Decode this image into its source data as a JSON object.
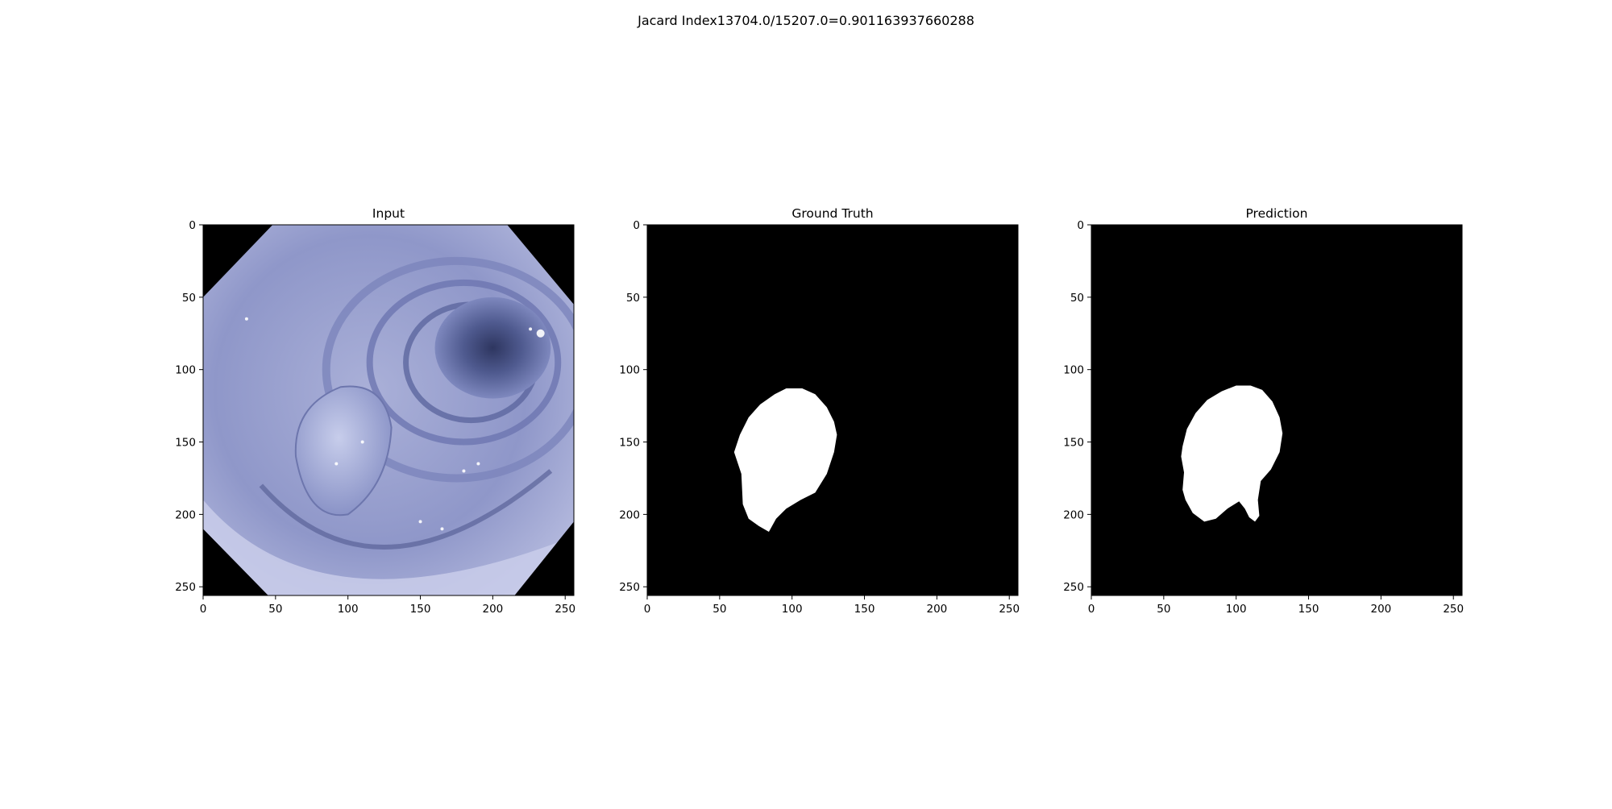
{
  "figure": {
    "suptitle": "Jacard Index13704.0/15207.0=0.901163937660288"
  },
  "panels": [
    {
      "title": "Input",
      "kind": "endoscopy-image",
      "xticks": [
        "0",
        "50",
        "100",
        "150",
        "200",
        "250"
      ],
      "yticks": [
        "0",
        "50",
        "100",
        "150",
        "200",
        "250"
      ]
    },
    {
      "title": "Ground Truth",
      "kind": "mask",
      "xticks": [
        "0",
        "50",
        "100",
        "150",
        "200",
        "250"
      ],
      "yticks": [
        "0",
        "50",
        "100",
        "150",
        "200",
        "250"
      ]
    },
    {
      "title": "Prediction",
      "kind": "mask",
      "xticks": [
        "0",
        "50",
        "100",
        "150",
        "200",
        "250"
      ],
      "yticks": [
        "0",
        "50",
        "100",
        "150",
        "200",
        "250"
      ]
    }
  ],
  "chart_data": [
    {
      "type": "heatmap",
      "title": "Input",
      "xlim": [
        0,
        256
      ],
      "ylim": [
        256,
        0
      ],
      "xticks": [
        0,
        50,
        100,
        150,
        200,
        250
      ],
      "yticks": [
        0,
        50,
        100,
        150,
        200,
        250
      ]
    },
    {
      "type": "heatmap",
      "title": "Ground Truth",
      "xlim": [
        0,
        256
      ],
      "ylim": [
        256,
        0
      ],
      "xticks": [
        0,
        50,
        100,
        150,
        200,
        250
      ],
      "yticks": [
        0,
        50,
        100,
        150,
        200,
        250
      ],
      "mask_outline": [
        [
          60,
          157
        ],
        [
          64,
          145
        ],
        [
          70,
          133
        ],
        [
          78,
          124
        ],
        [
          88,
          117
        ],
        [
          96,
          113
        ],
        [
          107,
          113
        ],
        [
          116,
          117
        ],
        [
          124,
          126
        ],
        [
          129,
          136
        ],
        [
          131,
          145
        ],
        [
          129,
          157
        ],
        [
          124,
          172
        ],
        [
          116,
          185
        ],
        [
          106,
          190
        ],
        [
          96,
          196
        ],
        [
          89,
          203
        ],
        [
          84,
          212
        ],
        [
          77,
          208
        ],
        [
          70,
          203
        ],
        [
          66,
          193
        ],
        [
          65,
          172
        ],
        [
          61,
          160
        ]
      ]
    },
    {
      "type": "heatmap",
      "title": "Prediction",
      "xlim": [
        0,
        256
      ],
      "ylim": [
        256,
        0
      ],
      "xticks": [
        0,
        50,
        100,
        150,
        200,
        250
      ],
      "yticks": [
        0,
        50,
        100,
        150,
        200,
        250
      ],
      "mask_outline": [
        [
          63,
          153
        ],
        [
          66,
          141
        ],
        [
          72,
          130
        ],
        [
          80,
          121
        ],
        [
          90,
          115
        ],
        [
          100,
          111
        ],
        [
          110,
          111
        ],
        [
          118,
          114
        ],
        [
          125,
          122
        ],
        [
          130,
          133
        ],
        [
          132,
          144
        ],
        [
          130,
          157
        ],
        [
          124,
          169
        ],
        [
          117,
          177
        ],
        [
          115,
          190
        ],
        [
          116,
          201
        ],
        [
          113,
          205
        ],
        [
          109,
          202
        ],
        [
          106,
          196
        ],
        [
          102,
          191
        ],
        [
          94,
          196
        ],
        [
          86,
          203
        ],
        [
          78,
          205
        ],
        [
          70,
          199
        ],
        [
          65,
          190
        ],
        [
          63,
          183
        ],
        [
          64,
          171
        ],
        [
          62,
          160
        ]
      ]
    }
  ]
}
